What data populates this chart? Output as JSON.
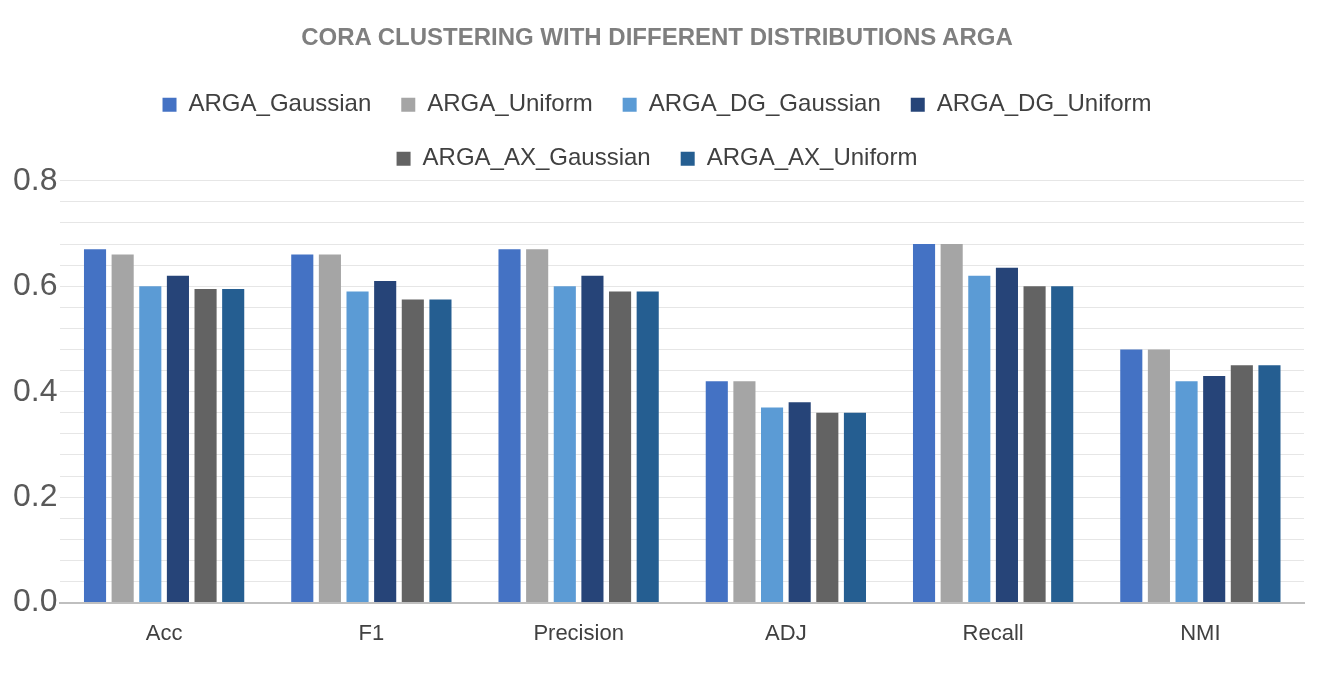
{
  "chart_data": {
    "type": "bar",
    "title": "CORA CLUSTERING WITH DIFFERENT DISTRIBUTIONS ARGA",
    "categories": [
      "Acc",
      "F1",
      "Precision",
      "ADJ",
      "Recall",
      "NMI"
    ],
    "series": [
      {
        "name": "ARGA_Gaussian",
        "color": "#4472c4",
        "values": [
          0.67,
          0.66,
          0.67,
          0.42,
          0.68,
          0.48
        ]
      },
      {
        "name": "ARGA_Uniform",
        "color": "#a5a5a5",
        "values": [
          0.66,
          0.66,
          0.67,
          0.42,
          0.68,
          0.48
        ]
      },
      {
        "name": "ARGA_DG_Gaussian",
        "color": "#5b9bd5",
        "values": [
          0.6,
          0.59,
          0.6,
          0.37,
          0.62,
          0.42
        ]
      },
      {
        "name": "ARGA_DG_Uniform",
        "color": "#264478",
        "values": [
          0.62,
          0.61,
          0.62,
          0.38,
          0.635,
          0.43
        ]
      },
      {
        "name": "ARGA_AX_Gaussian",
        "color": "#636363",
        "values": [
          0.595,
          0.575,
          0.59,
          0.36,
          0.6,
          0.45
        ]
      },
      {
        "name": "ARGA_AX_Uniform",
        "color": "#255e91",
        "values": [
          0.595,
          0.575,
          0.59,
          0.36,
          0.6,
          0.45
        ]
      }
    ],
    "ylim": [
      0,
      0.8
    ],
    "yticks": [
      {
        "value": 0,
        "label": "0.0"
      },
      {
        "value": 0.04,
        "label": null
      },
      {
        "value": 0.08,
        "label": null
      },
      {
        "value": 0.12,
        "label": null
      },
      {
        "value": 0.16,
        "label": null
      },
      0.2,
      {
        "value": 0.24,
        "label": null
      },
      {
        "value": 0.28,
        "label": null
      },
      {
        "value": 0.32,
        "label": null
      },
      {
        "value": 0.36,
        "label": null
      },
      0.4,
      {
        "value": 0.44,
        "label": null
      },
      {
        "value": 0.48,
        "label": null
      },
      {
        "value": 0.52,
        "label": null
      },
      {
        "value": 0.56,
        "label": null
      },
      0.6,
      {
        "value": 0.64,
        "label": null
      },
      {
        "value": 0.68,
        "label": null
      },
      {
        "value": 0.72,
        "label": null
      },
      {
        "value": 0.76,
        "label": null
      },
      0.8
    ],
    "grid": "y",
    "legend": "top"
  }
}
